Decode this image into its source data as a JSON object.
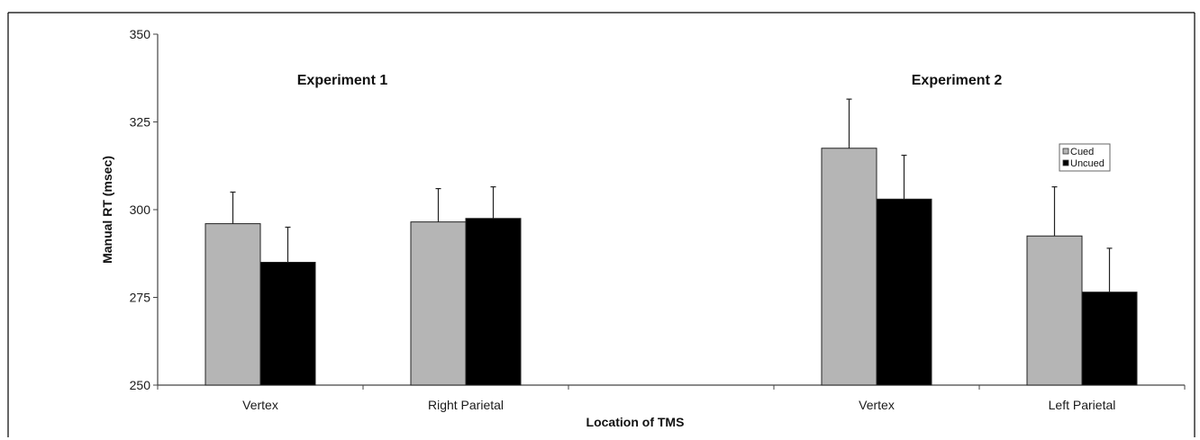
{
  "chart_data": {
    "type": "bar",
    "categories": [
      "Vertex",
      "Right Parietal",
      "Vertex",
      "Left Parietal"
    ],
    "category_groups": [
      0,
      0,
      1,
      1
    ],
    "series": [
      {
        "name": "Cued",
        "color": "#b5b5b5",
        "values": [
          296,
          296.5,
          317.5,
          292.5
        ],
        "error": [
          9,
          9.5,
          14,
          14
        ]
      },
      {
        "name": "Uncued",
        "color": "#000000",
        "values": [
          285,
          297.5,
          303,
          276.5
        ],
        "error": [
          10,
          9,
          12.5,
          12.5
        ]
      }
    ],
    "xlabel": "Location of TMS",
    "ylabel": "Manual RT (msec)",
    "ylim": [
      250,
      350
    ],
    "yticks": [
      250,
      275,
      300,
      325,
      350
    ],
    "annotations": [
      "Experiment 1",
      "Experiment 2"
    ],
    "grid": false,
    "legend_position": "right"
  }
}
